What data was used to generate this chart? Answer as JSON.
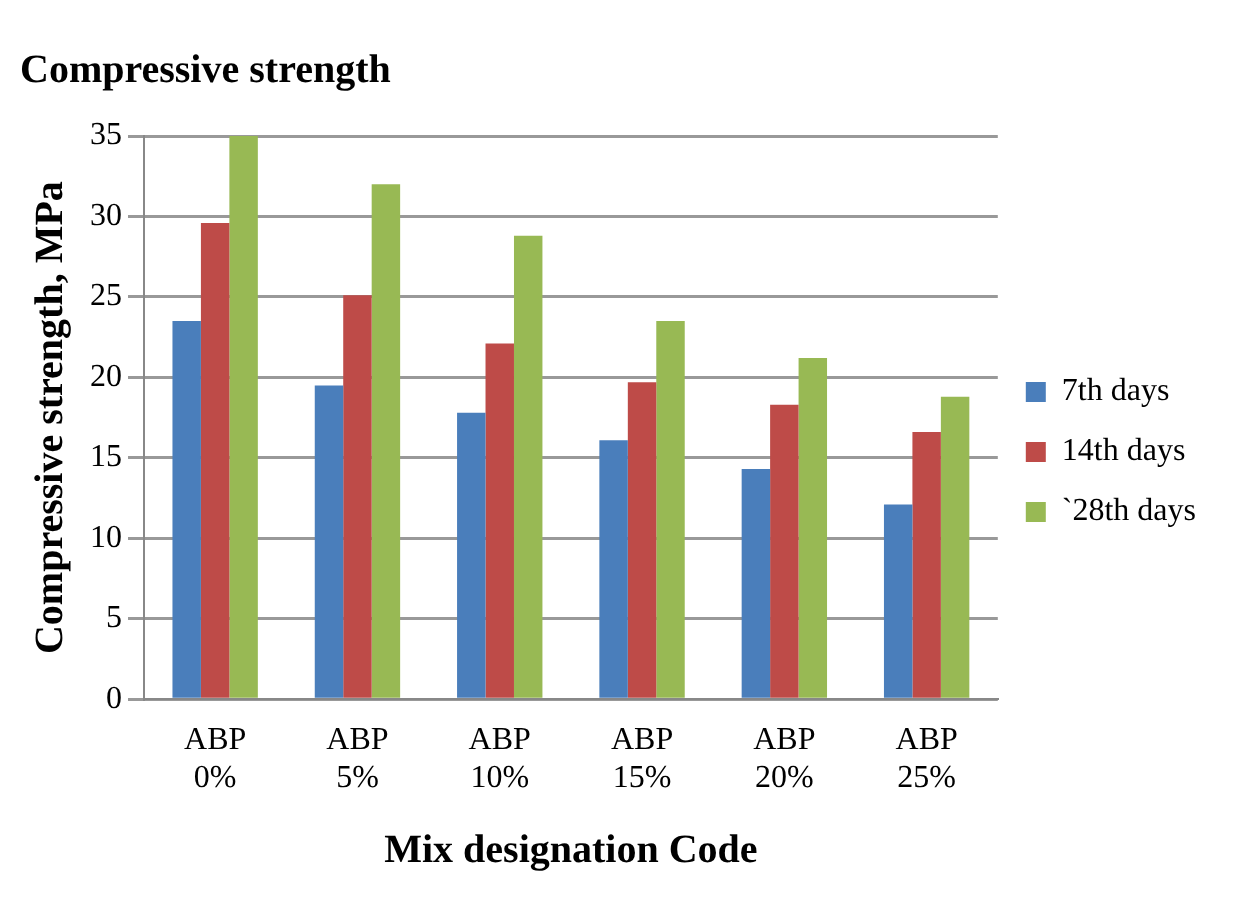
{
  "chart_data": {
    "type": "bar",
    "title": "Compressive strength",
    "xlabel": "Mix designation Code",
    "ylabel": "Compressive strength, MPa",
    "categories": [
      "ABP 0%",
      "ABP 5%",
      "ABP 10%",
      "ABP 15%",
      "ABP 20%",
      "ABP 25%"
    ],
    "series": [
      {
        "name": "7th days",
        "color": "#4a7ebb",
        "values": [
          23.5,
          19.5,
          17.8,
          16.1,
          14.3,
          12.1
        ]
      },
      {
        "name": "14th days",
        "color": "#be4b48",
        "values": [
          29.6,
          25.1,
          22.1,
          19.7,
          18.3,
          16.6
        ]
      },
      {
        "name": "`28th days",
        "color": "#98b954",
        "values": [
          35,
          32,
          28.8,
          23.5,
          21.2,
          18.8
        ]
      }
    ],
    "ylim": [
      0,
      35
    ],
    "yticks": [
      0,
      5,
      10,
      15,
      20,
      25,
      30,
      35
    ],
    "grid": "y",
    "legend": "right"
  }
}
